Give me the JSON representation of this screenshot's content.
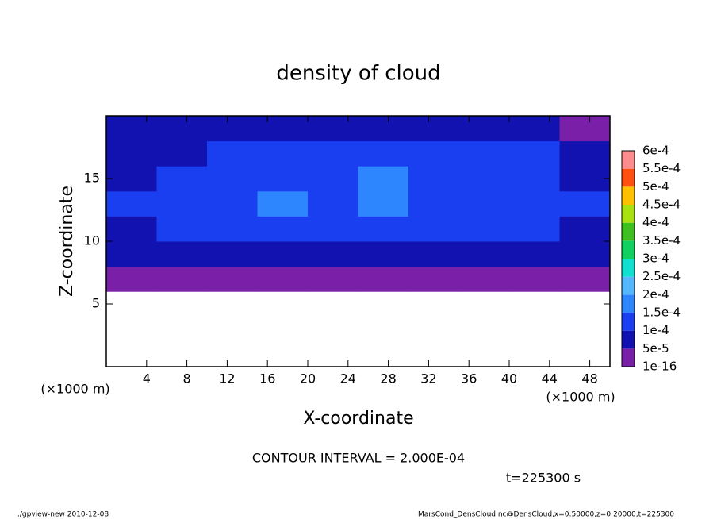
{
  "chart_data": {
    "type": "contour",
    "title": "density of cloud",
    "xlabel": "X-coordinate",
    "ylabel": "Z-coordinate",
    "x_unit": "(×1000 m)",
    "contour_interval": "CONTOUR INTERVAL = 2.000E-04",
    "time_label": "t=225300 s",
    "footer_left": "./gpview-new  2010-12-08",
    "footer_right": "MarsCond_DensCloud.nc@DensCloud,x=0:50000,z=0:20000,t=225300",
    "xlim": [
      0,
      50
    ],
    "ylim": [
      0,
      20
    ],
    "xticks": [
      4,
      8,
      12,
      16,
      20,
      24,
      28,
      32,
      36,
      40,
      44,
      48
    ],
    "yticks": [
      5,
      10,
      15
    ],
    "x": [
      2.5,
      7.5,
      12.5,
      17.5,
      22.5,
      27.5,
      32.5,
      37.5,
      42.5,
      47.5
    ],
    "y": [
      1,
      3,
      5,
      7,
      9,
      11,
      13,
      15,
      17,
      19
    ],
    "z": [
      [
        null,
        null,
        null,
        null,
        null,
        null,
        null,
        null,
        null,
        null
      ],
      [
        null,
        null,
        null,
        null,
        null,
        null,
        null,
        null,
        null,
        null
      ],
      [
        null,
        null,
        null,
        null,
        null,
        null,
        null,
        null,
        null,
        null
      ],
      [
        2e-05,
        2e-05,
        2e-05,
        2e-05,
        2e-05,
        2e-05,
        2e-05,
        2e-05,
        2e-05,
        2e-05
      ],
      [
        6e-05,
        7e-05,
        7e-05,
        8e-05,
        7e-05,
        8e-05,
        7e-05,
        7e-05,
        7e-05,
        6e-05
      ],
      [
        9e-05,
        0.000105,
        0.00011,
        0.00012,
        0.00011,
        0.00012,
        0.00011,
        0.00011,
        0.000105,
        9e-05
      ],
      [
        0.00011,
        0.00012,
        0.00012,
        0.00016,
        0.00013,
        0.00016,
        0.00013,
        0.00012,
        0.00012,
        0.00011
      ],
      [
        8e-05,
        0.00011,
        0.00012,
        0.00013,
        0.00012,
        0.00015,
        0.00012,
        0.00012,
        0.00011,
        8e-05
      ],
      [
        9e-05,
        7e-05,
        0.00011,
        0.00012,
        0.00013,
        0.00013,
        0.00013,
        0.00012,
        0.0001,
        9e-05
      ],
      [
        6e-05,
        7e-05,
        8e-05,
        8e-05,
        7e-05,
        7e-05,
        7e-05,
        6e-05,
        7e-05,
        4e-05
      ]
    ],
    "levels": [
      1e-16,
      {
        "value": 5e-05,
        "label": "5e-5"
      },
      {
        "value": 0.0001,
        "label": "1e-4"
      },
      {
        "value": 0.00015,
        "label": "1.5e-4"
      },
      {
        "value": 0.0002,
        "label": "2e-4"
      },
      {
        "value": 0.00025,
        "label": "2.5e-4"
      },
      {
        "value": 0.0003,
        "label": "3e-4"
      },
      {
        "value": 0.00035,
        "label": "3.5e-4"
      },
      {
        "value": 0.0004,
        "label": "4e-4"
      },
      {
        "value": 0.00045,
        "label": "4.5e-4"
      },
      {
        "value": 0.0005,
        "label": "5e-4"
      },
      {
        "value": 0.00055,
        "label": "5.5e-4"
      },
      {
        "value": 0.0006,
        "label": "6e-4"
      }
    ],
    "colors": [
      "#7a1fa8",
      "#1212b0",
      "#1a3ff0",
      "#2e86ff",
      "#55b8ff",
      "#10e0d0",
      "#10d060",
      "#40c020",
      "#a8e010",
      "#ffc000",
      "#ff5010",
      "#ff8c8c"
    ]
  }
}
